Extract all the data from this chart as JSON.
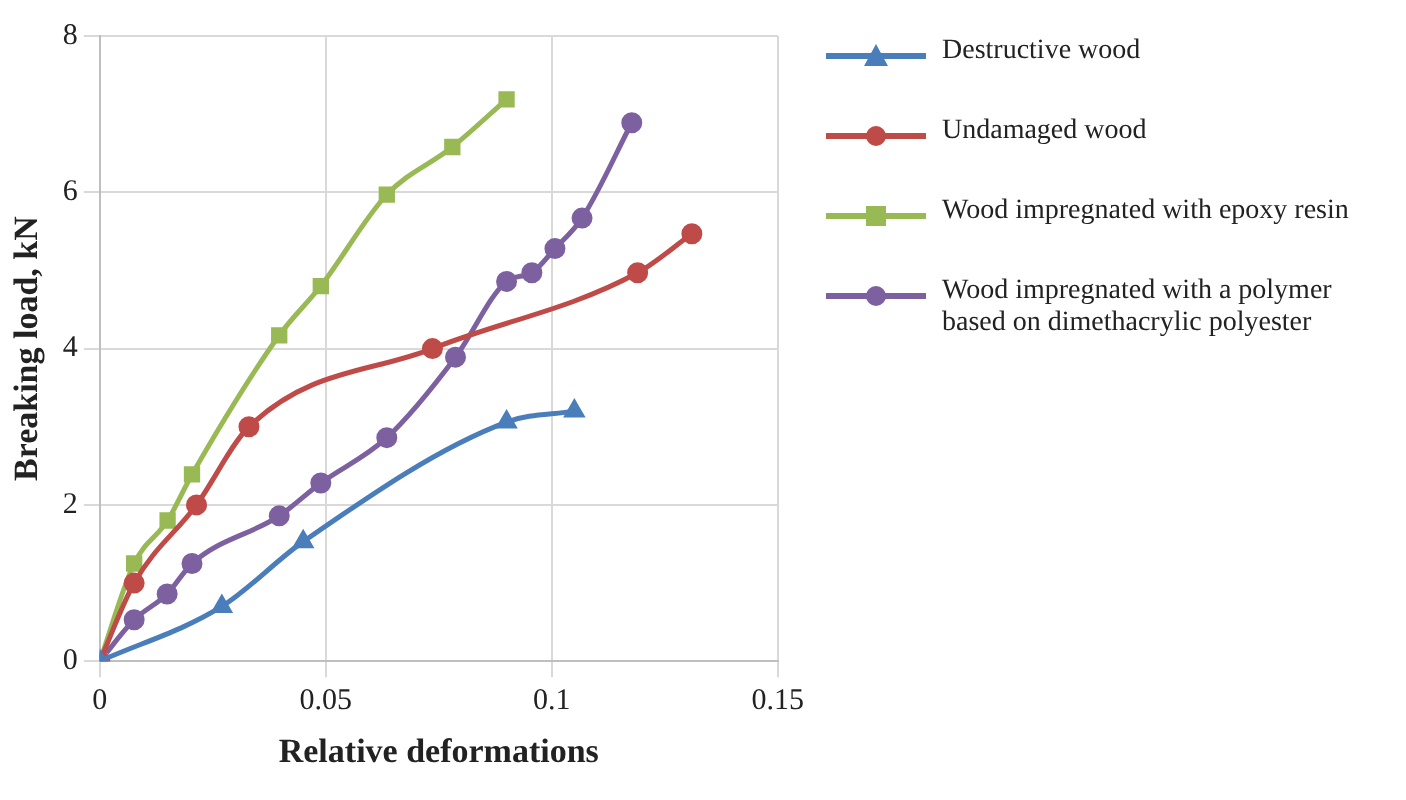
{
  "chart_data": {
    "type": "line",
    "xlabel": "Relative deformations",
    "ylabel": "Breaking load, kN",
    "xlim": [
      0,
      0.15
    ],
    "xticks": [
      0,
      0.05,
      0.1,
      0.15
    ],
    "ylim": [
      0,
      8
    ],
    "yticks": [
      0,
      2,
      4,
      6,
      8
    ],
    "grid": true,
    "legend": "right",
    "line_style": "solid",
    "series": [
      {
        "name": "Destructive wood",
        "color": "#4a7ebb",
        "marker": "triangle",
        "x": [
          0,
          0.027,
          0.045,
          0.09,
          0.105
        ],
        "values": [
          0,
          0.7,
          1.53,
          3.06,
          3.2
        ]
      },
      {
        "name": "Undamaged wood",
        "color": "#be4b48",
        "marker": "circle",
        "x": [
          0,
          0.0076,
          0.0214,
          0.033,
          0.0736,
          0.119,
          0.131
        ],
        "values": [
          0,
          1.0,
          2.0,
          3.0,
          4.0,
          4.97,
          5.47
        ]
      },
      {
        "name": "Wood impregnated with epoxy resin",
        "color": "#98b954",
        "marker": "square",
        "x": [
          0,
          0.0076,
          0.015,
          0.0204,
          0.0397,
          0.0489,
          0.0635,
          0.078,
          0.09
        ],
        "values": [
          0,
          1.25,
          1.8,
          2.39,
          4.17,
          4.8,
          5.97,
          6.58,
          7.19
        ]
      },
      {
        "name": "Wood impregnated with a polymer based on dimethacrylic polyester",
        "color": "#7d60a0",
        "marker": "circle",
        "x": [
          0,
          0.0076,
          0.0149,
          0.0204,
          0.0397,
          0.0489,
          0.0635,
          0.0787,
          0.09,
          0.0956,
          0.1007,
          0.1067,
          0.1177
        ],
        "values": [
          0,
          0.53,
          0.86,
          1.25,
          1.86,
          2.28,
          2.86,
          3.89,
          4.86,
          4.97,
          5.28,
          5.67,
          6.89
        ]
      }
    ]
  }
}
